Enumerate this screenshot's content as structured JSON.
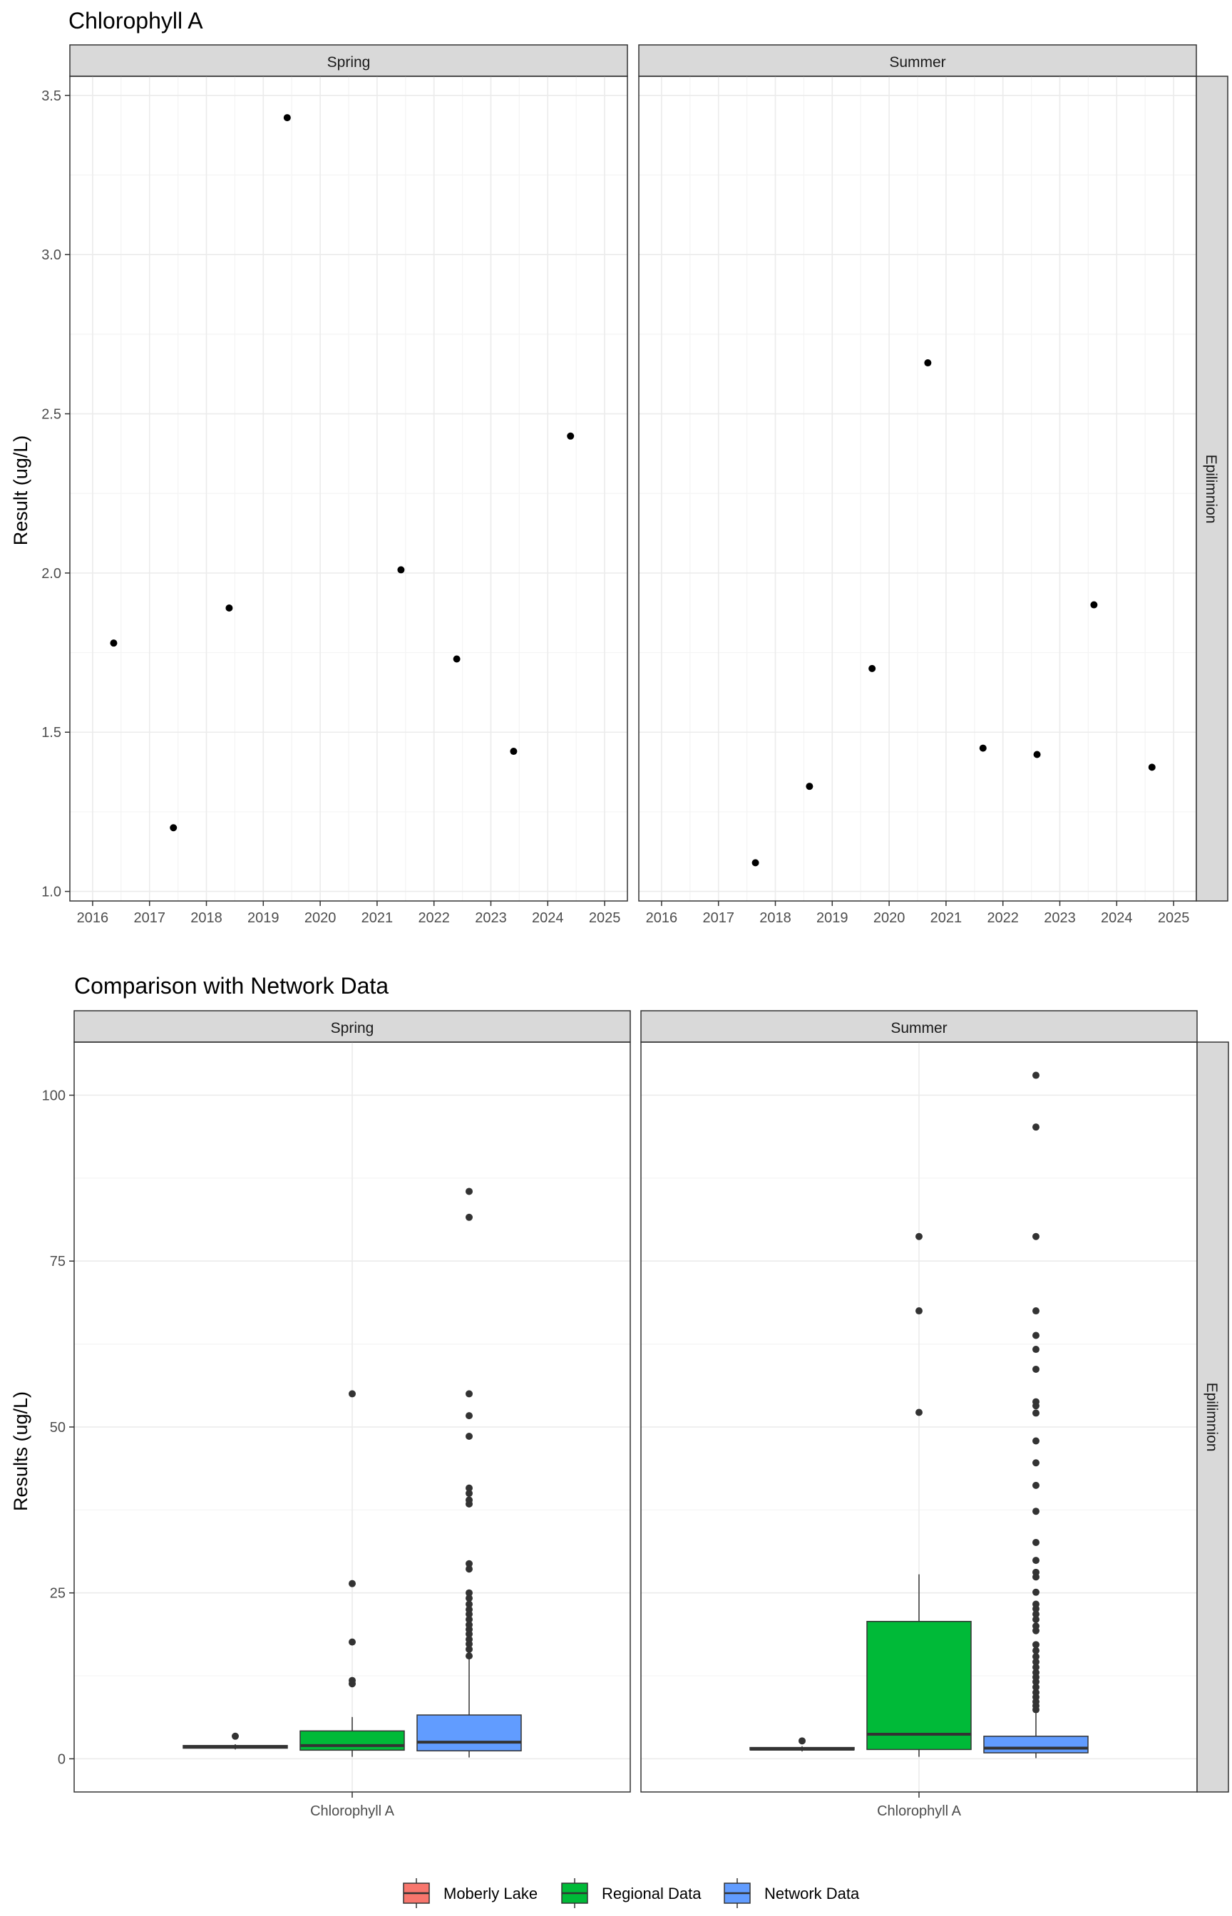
{
  "chart_data": [
    {
      "type": "scatter",
      "title": "Chlorophyll A",
      "ylabel": "Result (ug/L)",
      "xlabel": "",
      "ylim": [
        0.97,
        3.56
      ],
      "yticks": [
        "1.0",
        "1.5",
        "2.0",
        "2.5",
        "3.0",
        "3.5"
      ],
      "xlim": [
        2015.6,
        2025.4
      ],
      "xticks": [
        "2016",
        "2017",
        "2018",
        "2019",
        "2020",
        "2021",
        "2022",
        "2023",
        "2024",
        "2025"
      ],
      "grid": true,
      "row_strip": "Epilimnion",
      "panels": [
        {
          "strip": "Spring",
          "points": [
            {
              "x": 2016.37,
              "y": 1.78
            },
            {
              "x": 2017.42,
              "y": 1.2
            },
            {
              "x": 2018.4,
              "y": 1.89
            },
            {
              "x": 2019.42,
              "y": 3.43
            },
            {
              "x": 2021.42,
              "y": 2.01
            },
            {
              "x": 2022.4,
              "y": 1.73
            },
            {
              "x": 2023.4,
              "y": 1.44
            },
            {
              "x": 2024.4,
              "y": 2.43
            }
          ]
        },
        {
          "strip": "Summer",
          "points": [
            {
              "x": 2017.65,
              "y": 1.09
            },
            {
              "x": 2018.6,
              "y": 1.33
            },
            {
              "x": 2019.7,
              "y": 1.7
            },
            {
              "x": 2020.68,
              "y": 2.66
            },
            {
              "x": 2021.65,
              "y": 1.45
            },
            {
              "x": 2022.6,
              "y": 1.43
            },
            {
              "x": 2023.6,
              "y": 1.9
            },
            {
              "x": 2024.62,
              "y": 1.39
            }
          ]
        }
      ]
    },
    {
      "type": "box",
      "title": "Comparison with Network Data",
      "ylabel": "Results (ug/L)",
      "xlabel": "",
      "category": "Chlorophyll A",
      "ylim": [
        -5,
        108
      ],
      "yticks": [
        0,
        25,
        50,
        75,
        100
      ],
      "grid": true,
      "row_strip": "Epilimnion",
      "legend_position": "bottom",
      "legend": [
        {
          "name": "Moberly Lake",
          "color": "#F8766D"
        },
        {
          "name": "Regional Data",
          "color": "#00BA38"
        },
        {
          "name": "Network Data",
          "color": "#619CFF"
        }
      ],
      "panels": [
        {
          "strip": "Spring",
          "boxes": [
            {
              "series": "Moberly Lake",
              "min": 1.4,
              "q1": 1.6,
              "median": 1.8,
              "q3": 2.0,
              "max": 2.2,
              "outliers": [
                3.4
              ]
            },
            {
              "series": "Regional Data",
              "min": 0.3,
              "q1": 1.3,
              "median": 2.0,
              "q3": 4.2,
              "max": 6.3,
              "outliers": [
                11.3,
                11.8,
                17.6,
                26.4,
                55.0
              ]
            },
            {
              "series": "Network Data",
              "min": 0.2,
              "q1": 1.2,
              "median": 2.5,
              "q3": 6.6,
              "max": 15.0,
              "outliers": [
                15.5,
                16.5,
                17.3,
                18.0,
                18.8,
                19.5,
                20.2,
                21.0,
                21.8,
                22.5,
                23.3,
                24.2,
                25.0,
                28.6,
                29.4,
                38.4,
                39.0,
                40.0,
                40.8,
                48.6,
                51.7,
                55.0,
                81.6,
                85.5
              ]
            }
          ]
        },
        {
          "strip": "Summer",
          "boxes": [
            {
              "series": "Moberly Lake",
              "min": 1.1,
              "q1": 1.35,
              "median": 1.45,
              "q3": 1.7,
              "max": 1.9,
              "outliers": [
                2.7
              ]
            },
            {
              "series": "Regional Data",
              "min": 0.3,
              "q1": 1.4,
              "median": 3.7,
              "q3": 20.7,
              "max": 27.8,
              "outliers": [
                52.2,
                67.5,
                78.7
              ]
            },
            {
              "series": "Network Data",
              "min": 0.1,
              "q1": 0.9,
              "median": 1.6,
              "q3": 3.4,
              "max": 7.1,
              "outliers": [
                7.4,
                8.0,
                8.6,
                9.3,
                10.0,
                10.8,
                11.6,
                12.3,
                13.0,
                13.8,
                14.6,
                15.4,
                16.3,
                17.2,
                19.3,
                20.0,
                21.0,
                21.8,
                22.6,
                23.3,
                25.1,
                27.4,
                28.1,
                29.9,
                32.6,
                37.3,
                41.2,
                44.6,
                47.9,
                52.1,
                53.2,
                53.8,
                58.7,
                61.7,
                63.8,
                67.5,
                78.7,
                95.2,
                103.0
              ]
            }
          ]
        }
      ]
    }
  ]
}
